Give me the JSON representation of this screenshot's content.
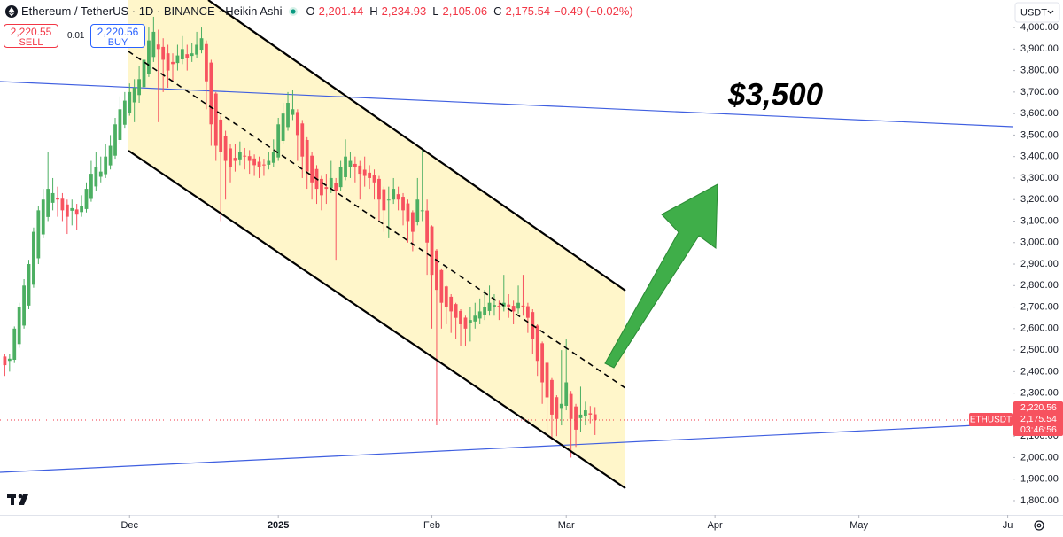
{
  "chart_data": {
    "type": "candlestick",
    "annotation": "$3,500",
    "up_color": "#4caf62",
    "down_color": "#f7525f",
    "xlim": [
      -1,
      210
    ],
    "xticks": [
      {
        "value": 26,
        "label": "Dec"
      },
      {
        "value": 57,
        "label": "2025"
      },
      {
        "value": 89,
        "label": "Feb"
      },
      {
        "value": 117,
        "label": "Mar"
      },
      {
        "value": 148,
        "label": "Apr"
      },
      {
        "value": 178,
        "label": "May"
      },
      {
        "value": 209,
        "label": "Ju"
      }
    ],
    "ylim": [
      1734,
      4128
    ],
    "yticks": [
      {
        "value": 4000,
        "label": "4,000.00"
      },
      {
        "value": 3900,
        "label": "3,900.00"
      },
      {
        "value": 3800,
        "label": "3,800.00"
      },
      {
        "value": 3700,
        "label": "3,700.00"
      },
      {
        "value": 3600,
        "label": "3,600.00"
      },
      {
        "value": 3500,
        "label": "3,500.00"
      },
      {
        "value": 3400,
        "label": "3,400.00"
      },
      {
        "value": 3300,
        "label": "3,300.00"
      },
      {
        "value": 3200,
        "label": "3,200.00"
      },
      {
        "value": 3100,
        "label": "3,100.00"
      },
      {
        "value": 3000,
        "label": "3,000.00"
      },
      {
        "value": 2900,
        "label": "2,900.00"
      },
      {
        "value": 2800,
        "label": "2,800.00"
      },
      {
        "value": 2700,
        "label": "2,700.00"
      },
      {
        "value": 2600,
        "label": "2,600.00"
      },
      {
        "value": 2500,
        "label": "2,500.00"
      },
      {
        "value": 2400,
        "label": "2,400.00"
      },
      {
        "value": 2300,
        "label": "2,300.00"
      },
      {
        "value": 2200,
        "label": "2,200.00"
      },
      {
        "value": 2100,
        "label": "2,100.00"
      },
      {
        "value": 2000,
        "label": "2,000.00"
      },
      {
        "value": 1900,
        "label": "1,900.00"
      },
      {
        "value": 1800,
        "label": "1,800.00"
      }
    ],
    "candles": [
      [
        2470,
        2480,
        2380,
        2430
      ],
      [
        2450,
        2480,
        2400,
        2460
      ],
      [
        2455,
        2610,
        2440,
        2600
      ],
      [
        2528,
        2720,
        2510,
        2700
      ],
      [
        2614,
        2830,
        2600,
        2800
      ],
      [
        2707,
        2920,
        2690,
        2900
      ],
      [
        2804,
        3070,
        2790,
        3050
      ],
      [
        2927,
        3170,
        2900,
        3150
      ],
      [
        3038,
        3250,
        3020,
        3200
      ],
      [
        3119,
        3420,
        3100,
        3250
      ],
      [
        3185,
        3300,
        3150,
        3230
      ],
      [
        3207,
        3260,
        3120,
        3200
      ],
      [
        3204,
        3230,
        3100,
        3150
      ],
      [
        3177,
        3200,
        3040,
        3120
      ],
      [
        3148,
        3200,
        3080,
        3160
      ],
      [
        3154,
        3180,
        3060,
        3130
      ],
      [
        3142,
        3220,
        3120,
        3170
      ],
      [
        3156,
        3280,
        3140,
        3250
      ],
      [
        3203,
        3380,
        3190,
        3320
      ],
      [
        3261,
        3420,
        3240,
        3350
      ],
      [
        3306,
        3400,
        3280,
        3330
      ],
      [
        3318,
        3460,
        3300,
        3400
      ],
      [
        3359,
        3500,
        3340,
        3450
      ],
      [
        3404,
        3580,
        3390,
        3550
      ],
      [
        3477,
        3680,
        3460,
        3620
      ],
      [
        3548,
        3700,
        3530,
        3660
      ],
      [
        3604,
        3740,
        3590,
        3700
      ],
      [
        3652,
        3760,
        3560,
        3720
      ],
      [
        3686,
        3820,
        3650,
        3760
      ],
      [
        3723,
        3900,
        3700,
        3850
      ],
      [
        3786,
        4000,
        3770,
        3940
      ],
      [
        3863,
        4050,
        3840,
        3980
      ],
      [
        3921,
        3990,
        3560,
        3900
      ],
      [
        3910,
        3950,
        3700,
        3850
      ],
      [
        3880,
        3920,
        3720,
        3800
      ],
      [
        3840,
        3880,
        3750,
        3830
      ],
      [
        3835,
        3920,
        3800,
        3870
      ],
      [
        3852,
        3960,
        3830,
        3900
      ],
      [
        3876,
        3920,
        3800,
        3860
      ],
      [
        3868,
        3930,
        3840,
        3880
      ],
      [
        3874,
        3980,
        3860,
        3920
      ],
      [
        3897,
        4000,
        3880,
        3950
      ],
      [
        3923,
        3940,
        3620,
        3750
      ],
      [
        3837,
        3850,
        3450,
        3550
      ],
      [
        3693,
        3700,
        3380,
        3450
      ],
      [
        3572,
        3590,
        3100,
        3420
      ],
      [
        3496,
        3520,
        3200,
        3380
      ],
      [
        3438,
        3460,
        3280,
        3350
      ],
      [
        3394,
        3460,
        3330,
        3380
      ],
      [
        3387,
        3470,
        3360,
        3420
      ],
      [
        3404,
        3440,
        3340,
        3400
      ],
      [
        3402,
        3430,
        3320,
        3380
      ],
      [
        3391,
        3410,
        3310,
        3360
      ],
      [
        3376,
        3400,
        3300,
        3350
      ],
      [
        3363,
        3390,
        3310,
        3360
      ],
      [
        3362,
        3420,
        3340,
        3380
      ],
      [
        3371,
        3480,
        3350,
        3420
      ],
      [
        3396,
        3580,
        3380,
        3550
      ],
      [
        3473,
        3650,
        3460,
        3600
      ],
      [
        3537,
        3700,
        3520,
        3650
      ],
      [
        3594,
        3710,
        3570,
        3620
      ],
      [
        3607,
        3620,
        3380,
        3500
      ],
      [
        3554,
        3570,
        3300,
        3400
      ],
      [
        3477,
        3490,
        3250,
        3330
      ],
      [
        3404,
        3420,
        3200,
        3280
      ],
      [
        3342,
        3360,
        3180,
        3250
      ],
      [
        3296,
        3310,
        3150,
        3220
      ],
      [
        3258,
        3320,
        3180,
        3250
      ],
      [
        3254,
        3380,
        3230,
        3300
      ],
      [
        3277,
        3300,
        2920,
        3240
      ],
      [
        3258,
        3380,
        3240,
        3350
      ],
      [
        3304,
        3480,
        3290,
        3400
      ],
      [
        3352,
        3420,
        3300,
        3380
      ],
      [
        3366,
        3400,
        3280,
        3350
      ],
      [
        3358,
        3380,
        3200,
        3320
      ],
      [
        3339,
        3400,
        3260,
        3310
      ],
      [
        3325,
        3360,
        3250,
        3300
      ],
      [
        3312,
        3340,
        3200,
        3280
      ],
      [
        3296,
        3310,
        3100,
        3200
      ],
      [
        3248,
        3260,
        3050,
        3150
      ],
      [
        3199,
        3260,
        3020,
        3200
      ],
      [
        3200,
        3300,
        3180,
        3250
      ],
      [
        3225,
        3260,
        3150,
        3200
      ],
      [
        3213,
        3230,
        3080,
        3150
      ],
      [
        3182,
        3200,
        3000,
        3100
      ],
      [
        3141,
        3150,
        2960,
        3050
      ],
      [
        3096,
        3300,
        3080,
        3200
      ],
      [
        3148,
        3430,
        3100,
        3150
      ],
      [
        3149,
        3200,
        2850,
        3000
      ],
      [
        3075,
        3080,
        2600,
        2850
      ],
      [
        2963,
        2970,
        2150,
        2780
      ],
      [
        2872,
        2880,
        2600,
        2720
      ],
      [
        2796,
        2800,
        2620,
        2700
      ],
      [
        2748,
        2760,
        2580,
        2680
      ],
      [
        2714,
        2720,
        2550,
        2650
      ],
      [
        2682,
        2690,
        2520,
        2620
      ],
      [
        2651,
        2660,
        2520,
        2600
      ],
      [
        2626,
        2700,
        2540,
        2640
      ],
      [
        2633,
        2720,
        2600,
        2660
      ],
      [
        2647,
        2740,
        2620,
        2680
      ],
      [
        2664,
        2780,
        2640,
        2700
      ],
      [
        2682,
        2800,
        2660,
        2720
      ],
      [
        2701,
        2760,
        2660,
        2710
      ],
      [
        2706,
        2730,
        2640,
        2700
      ],
      [
        2703,
        2850,
        2680,
        2720
      ],
      [
        2712,
        2760,
        2650,
        2700
      ],
      [
        2706,
        2730,
        2620,
        2680
      ],
      [
        2693,
        2800,
        2670,
        2720
      ],
      [
        2707,
        2850,
        2660,
        2700
      ],
      [
        2704,
        2720,
        2580,
        2650
      ],
      [
        2677,
        2690,
        2480,
        2550
      ],
      [
        2614,
        2620,
        2380,
        2450
      ],
      [
        2532,
        2540,
        2250,
        2350
      ],
      [
        2441,
        2450,
        2120,
        2280
      ],
      [
        2361,
        2370,
        2080,
        2200
      ],
      [
        2281,
        2290,
        2100,
        2180
      ],
      [
        2231,
        2500,
        2150,
        2250
      ],
      [
        2241,
        2550,
        2220,
        2350
      ],
      [
        2296,
        2310,
        2000,
        2180
      ],
      [
        2238,
        2250,
        2050,
        2130
      ],
      [
        2184,
        2330,
        2120,
        2200
      ],
      [
        2192,
        2260,
        2150,
        2220
      ],
      [
        2206,
        2240,
        2160,
        2200
      ],
      [
        2201.44,
        2234.93,
        2105.06,
        2175.54
      ]
    ]
  },
  "ui": {
    "symbol_title": "Ethereum / TetherUS · 1D · BINANCE · Heikin Ashi",
    "ohlc": [
      {
        "label": "O",
        "value": "2,201.44"
      },
      {
        "label": "H",
        "value": "2,234.93"
      },
      {
        "label": "L",
        "value": "2,105.06"
      },
      {
        "label": "C",
        "value": "2,175.54"
      }
    ],
    "change": "−0.49 (−0.02%)",
    "sell_price": "2,220.55",
    "sell_label": "SELL",
    "spread": "0.01",
    "buy_price": "2,220.56",
    "buy_label": "BUY",
    "currency": "USDT",
    "symbol_tag": "ETHUSDT",
    "price_tags": [
      "2,220.56",
      "2,175.54",
      "03:46:56"
    ]
  }
}
